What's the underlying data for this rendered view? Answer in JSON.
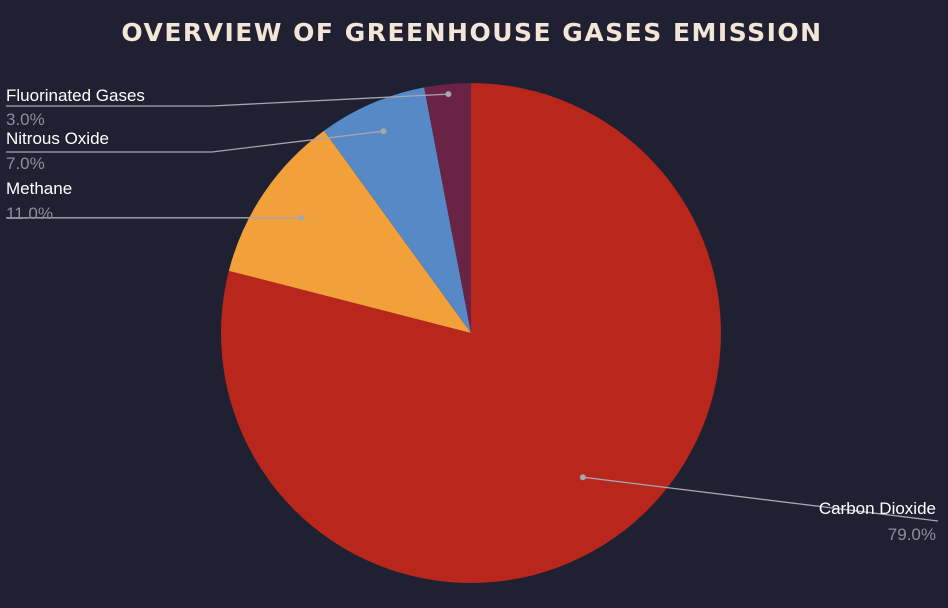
{
  "chart_data": {
    "type": "pie",
    "title": "OVERVIEW OF GREENHOUSE GASES EMISSION",
    "slices": [
      {
        "label": "Carbon Dioxide",
        "value": 79.0,
        "value_label": "79.0%",
        "color": "#b9271c"
      },
      {
        "label": "Methane",
        "value": 11.0,
        "value_label": "11.0%",
        "color": "#f2a03a"
      },
      {
        "label": "Nitrous Oxide",
        "value": 7.0,
        "value_label": "7.0%",
        "color": "#5689c6"
      },
      {
        "label": "Fluorinated Gases",
        "value": 3.0,
        "value_label": "3.0%",
        "color": "#6a2345"
      }
    ],
    "start": "top",
    "direction": "clockwise",
    "legend": "none",
    "label_color": "#ffffff",
    "value_color": "#8f8f98",
    "leader_color": "#a6a6ae",
    "background": "#1f2032",
    "title_color": "#f4e6d6"
  }
}
